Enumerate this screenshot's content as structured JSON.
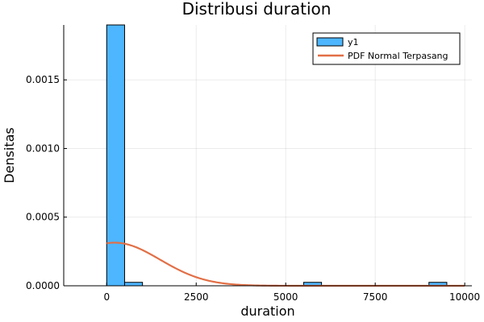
{
  "chart_data": {
    "type": "bar",
    "title": "Distribusi duration",
    "xlabel": "duration",
    "ylabel": "Densitas",
    "xlim": [
      -1200,
      10200
    ],
    "ylim": [
      0,
      0.0019
    ],
    "x_ticks": [
      0,
      2500,
      5000,
      7500,
      10000
    ],
    "x_tick_labels": [
      "0",
      "2500",
      "5000",
      "7500",
      "10000"
    ],
    "y_ticks": [
      0,
      0.0005,
      0.001,
      0.0015
    ],
    "y_tick_labels": [
      "0.0000",
      "0.0005",
      "0.0010",
      "0.0015"
    ],
    "grid": true,
    "legend_position": "top-right",
    "histogram": {
      "name": "y1",
      "color": "#4db6ff",
      "bins": [
        {
          "x0": 0,
          "x1": 500,
          "density": 0.0019
        },
        {
          "x0": 500,
          "x1": 1000,
          "density": 2.5e-05
        },
        {
          "x0": 5500,
          "x1": 6000,
          "density": 2.5e-05
        },
        {
          "x0": 9000,
          "x1": 9500,
          "density": 2.5e-05
        }
      ]
    },
    "pdf_curve": {
      "name": "PDF Normal Terpasang",
      "color": "#e26f46",
      "mean": 220,
      "std": 1270,
      "x_start": 0,
      "x_end": 10000
    }
  }
}
